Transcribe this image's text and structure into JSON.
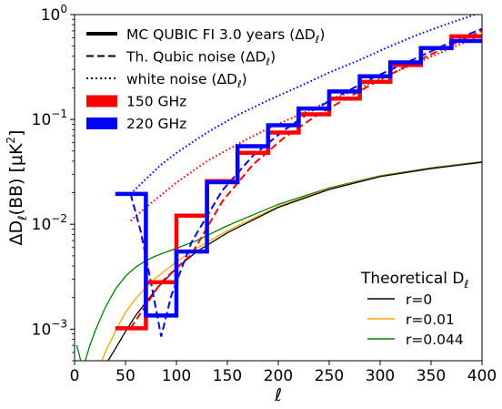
{
  "chart_data": {
    "type": "line",
    "xlabel": "ℓ",
    "ylabel_main": "ΔD",
    "ylabel_sub": "ℓ",
    "ylabel_rest": "(BB) [μK",
    "ylabel_sup": "2",
    "ylabel_end": "]",
    "xlim": [
      0,
      400
    ],
    "ylim": [
      0.0005,
      1
    ],
    "yscale": "log",
    "x_ticks": [
      0,
      50,
      100,
      150,
      200,
      250,
      300,
      350,
      400
    ],
    "x_tick_labels": [
      "0",
      "50",
      "100",
      "150",
      "200",
      "250",
      "300",
      "350",
      "400"
    ],
    "y_ticks": [
      0.001,
      0.01,
      0.1,
      1
    ],
    "y_tick_labels": [
      {
        "base": "10",
        "exp": "−3"
      },
      {
        "base": "10",
        "exp": "−2"
      },
      {
        "base": "10",
        "exp": "−1"
      },
      {
        "base": "10",
        "exp": "0"
      }
    ],
    "bin_edges": [
      40,
      70,
      100,
      130,
      160,
      190,
      220,
      250,
      280,
      310,
      340,
      370,
      400
    ],
    "bin_centers": [
      55,
      85,
      115,
      145,
      175,
      205,
      235,
      265,
      295,
      325,
      355,
      385
    ],
    "series": [
      {
        "name": "150 GHz",
        "style": "step",
        "color": "#ff0000",
        "values": [
          0.00102,
          0.0028,
          0.0121,
          0.0258,
          0.048,
          0.075,
          0.112,
          0.158,
          0.228,
          0.33,
          0.48,
          0.62
        ]
      },
      {
        "name": "220 GHz",
        "style": "step",
        "color": "#0000ff",
        "values": [
          0.0195,
          0.00135,
          0.0055,
          0.0252,
          0.0555,
          0.088,
          0.127,
          0.185,
          0.258,
          0.35,
          0.48,
          0.56
        ]
      },
      {
        "name": "Th. Qubic noise 150 GHz",
        "style": "dashed",
        "color": "#ff0000",
        "x": [
          55,
          85,
          115,
          145,
          175,
          205,
          235,
          265,
          295,
          325,
          355,
          385,
          400
        ],
        "values": [
          0.00102,
          0.0028,
          0.0052,
          0.0165,
          0.037,
          0.066,
          0.105,
          0.155,
          0.225,
          0.32,
          0.44,
          0.6,
          0.7
        ]
      },
      {
        "name": "Th. Qubic noise 220 GHz",
        "style": "dashed",
        "color": "#0000ff",
        "x": [
          55,
          65,
          75,
          85,
          95,
          115,
          145,
          175,
          205,
          235,
          265,
          295,
          325,
          355,
          385,
          400
        ],
        "values": [
          0.0195,
          0.0085,
          0.0028,
          0.00085,
          0.0021,
          0.0068,
          0.021,
          0.045,
          0.078,
          0.124,
          0.18,
          0.255,
          0.345,
          0.47,
          0.64,
          0.73
        ]
      },
      {
        "name": "white noise 150 GHz",
        "style": "dotted",
        "color": "#ff0000",
        "x": [
          55,
          70,
          85,
          100,
          130,
          160,
          190,
          220,
          250,
          280,
          310,
          340,
          370,
          400
        ],
        "values": [
          0.0108,
          0.0145,
          0.019,
          0.025,
          0.04,
          0.058,
          0.082,
          0.11,
          0.15,
          0.2,
          0.27,
          0.36,
          0.48,
          0.64
        ]
      },
      {
        "name": "white noise 220 GHz",
        "style": "dotted",
        "color": "#0000ff",
        "x": [
          55,
          70,
          85,
          100,
          130,
          160,
          190,
          220,
          250,
          280,
          310,
          340,
          370,
          400
        ],
        "values": [
          0.0195,
          0.027,
          0.037,
          0.048,
          0.075,
          0.11,
          0.152,
          0.205,
          0.28,
          0.37,
          0.5,
          0.66,
          0.84,
          1.05
        ]
      },
      {
        "name": "r=0",
        "style": "solid",
        "color": "#000000",
        "x": [
          30,
          40,
          50,
          60,
          70,
          80,
          100,
          120,
          150,
          200,
          250,
          300,
          350,
          400
        ],
        "values": [
          0.00045,
          0.00065,
          0.00095,
          0.00135,
          0.0018,
          0.0024,
          0.0038,
          0.0055,
          0.0083,
          0.0145,
          0.0215,
          0.0285,
          0.034,
          0.039
        ]
      },
      {
        "name": "r=0.01",
        "style": "solid",
        "color": "#ffa500",
        "x": [
          25,
          30,
          40,
          50,
          60,
          70,
          80,
          100,
          120,
          150,
          200,
          250,
          300,
          350,
          400
        ],
        "values": [
          0.00045,
          0.0006,
          0.00095,
          0.00145,
          0.00195,
          0.0025,
          0.0031,
          0.0044,
          0.0059,
          0.0087,
          0.0148,
          0.0218,
          0.0287,
          0.0342,
          0.0392
        ]
      },
      {
        "name": "r=0.044",
        "style": "solid",
        "color": "#008000",
        "x": [
          2,
          4,
          6,
          8,
          10,
          15,
          20,
          30,
          40,
          50,
          60,
          70,
          80,
          100,
          120,
          150,
          200,
          250,
          300,
          350,
          400
        ],
        "values": [
          0.0007,
          0.0006,
          0.0005,
          0.00045,
          0.00048,
          0.0007,
          0.00095,
          0.0016,
          0.0024,
          0.0032,
          0.0039,
          0.0045,
          0.005,
          0.0059,
          0.007,
          0.0097,
          0.0155,
          0.0222,
          0.029,
          0.0345,
          0.0395
        ]
      }
    ],
    "legend_main": {
      "placement": "top-left",
      "entries": [
        {
          "label_pre": "MC QUBIC FI 3.0 years (ΔD",
          "label_sub": "ℓ",
          "label_post": ")",
          "style": "solid-thick",
          "color": "#000000"
        },
        {
          "label_pre": "Th. Qubic noise (ΔD",
          "label_sub": "ℓ",
          "label_post": ")",
          "style": "dashed",
          "color": "#000000"
        },
        {
          "label_pre": "white noise (ΔD",
          "label_sub": "ℓ",
          "label_post": ")",
          "style": "dotted",
          "color": "#000000"
        },
        {
          "label_pre": "150 GHz",
          "label_sub": "",
          "label_post": "",
          "style": "block",
          "color": "#ff0000"
        },
        {
          "label_pre": "220 GHz",
          "label_sub": "",
          "label_post": "",
          "style": "block",
          "color": "#0000ff"
        }
      ]
    },
    "legend_theory": {
      "placement": "bottom-right",
      "title_pre": "Theoretical D",
      "title_sub": "ℓ",
      "entries": [
        {
          "label": "r=0",
          "color": "#000000"
        },
        {
          "label": "r=0.01",
          "color": "#ffa500"
        },
        {
          "label": "r=0.044",
          "color": "#008000"
        }
      ]
    }
  }
}
